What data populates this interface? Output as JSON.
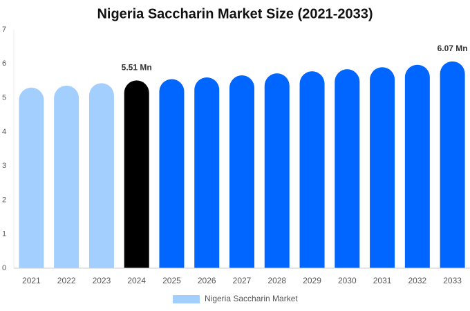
{
  "chart_data": {
    "type": "bar",
    "title": "Nigeria Saccharin Market Size (2021-2033)",
    "categories": [
      "2021",
      "2022",
      "2023",
      "2024",
      "2025",
      "2026",
      "2027",
      "2028",
      "2029",
      "2030",
      "2031",
      "2032",
      "2033"
    ],
    "series": [
      {
        "name": "Nigeria Saccharin Market",
        "color": "#a3cfff",
        "colors": [
          "#a3cfff",
          "#a3cfff",
          "#a3cfff",
          "#000000",
          "#0066ff",
          "#0066ff",
          "#0066ff",
          "#0066ff",
          "#0066ff",
          "#0066ff",
          "#0066ff",
          "#0066ff",
          "#0066ff"
        ],
        "values": [
          5.3,
          5.36,
          5.43,
          5.51,
          5.55,
          5.6,
          5.66,
          5.72,
          5.78,
          5.84,
          5.9,
          5.97,
          6.07
        ],
        "value_labels": [
          null,
          null,
          null,
          "5.51 Mn",
          null,
          null,
          null,
          null,
          null,
          null,
          null,
          null,
          "6.07 Mn"
        ]
      }
    ],
    "ylim": [
      0,
      7
    ],
    "yticks": [
      0,
      1,
      2,
      3,
      4,
      5,
      6,
      7
    ],
    "grid": false,
    "legend": "bottom"
  }
}
